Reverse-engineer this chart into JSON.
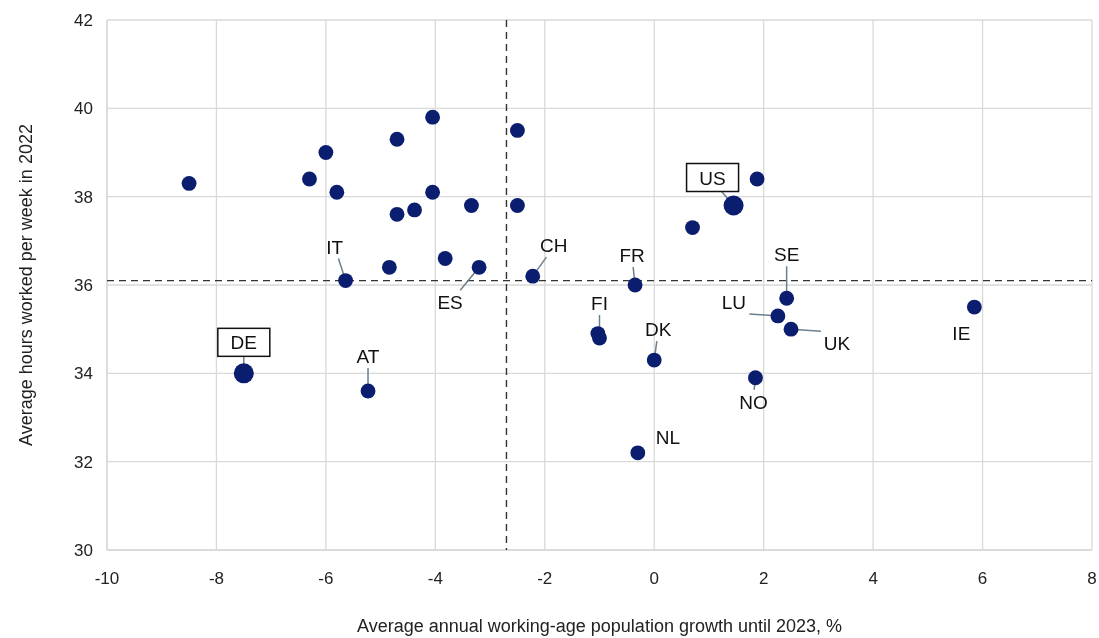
{
  "chart_data": {
    "type": "bubble",
    "xlabel": "Average annual working-age population growth until 2023, %",
    "ylabel": "Average hours worked per week in 2022",
    "xlim": [
      -10,
      8
    ],
    "xticks": [
      -10,
      -8,
      -6,
      -4,
      -2,
      0,
      2,
      4,
      6,
      8
    ],
    "ylim": [
      30,
      42
    ],
    "yticks": [
      30,
      32,
      34,
      36,
      38,
      40,
      42
    ],
    "grid": true,
    "marker": "circle",
    "series": [
      {
        "color": "#0b1d6e",
        "x": [
          -8.5,
          -6.0,
          -6.3,
          -5.8,
          -4.7,
          -4.05,
          -4.05,
          -4.7,
          -4.38,
          -3.34,
          -2.5,
          -2.5,
          -5.64,
          -4.84,
          -3.82,
          -3.2,
          -2.22,
          -7.5,
          -5.23,
          1.45,
          1.88,
          0.7,
          -0.35,
          -1.03,
          -1.0,
          0.0,
          -0.3,
          2.42,
          2.26,
          2.5,
          1.85,
          5.85
        ],
        "values": [
          38.3,
          39.0,
          38.4,
          38.1,
          39.3,
          39.8,
          38.1,
          37.6,
          37.7,
          37.8,
          39.5,
          37.8,
          36.1,
          36.4,
          36.6,
          36.4,
          36.2,
          34.0,
          33.6,
          37.8,
          38.4,
          37.3,
          36.0,
          34.9,
          34.8,
          34.3,
          32.2,
          35.7,
          35.3,
          35.0,
          33.9,
          35.5
        ],
        "sizes": [
          0.55,
          0.55,
          0.55,
          0.55,
          0.55,
          0.55,
          0.55,
          0.55,
          0.55,
          0.55,
          0.55,
          0.55,
          0.55,
          0.55,
          0.55,
          0.55,
          0.55,
          1,
          0.55,
          1,
          0.55,
          0.55,
          0.55,
          0.55,
          0.55,
          0.55,
          0.55,
          0.55,
          0.55,
          0.55,
          0.55,
          0.55
        ]
      }
    ],
    "ref_lines": [
      {
        "axis": "x",
        "value": -2.7,
        "color": "#333333",
        "line_style": "dashed"
      },
      {
        "axis": "y",
        "value": 36.1,
        "color": "#333333",
        "line_style": "dashed"
      }
    ],
    "annotations": [
      {
        "text": "IT",
        "x": -5.64,
        "y": 36.1
      },
      {
        "text": "ES",
        "x": -3.2,
        "y": 36.4
      },
      {
        "text": "CH",
        "x": -2.22,
        "y": 36.2
      },
      {
        "text": "DE",
        "x": -7.5,
        "y": 34.0
      },
      {
        "text": "AT",
        "x": -5.23,
        "y": 33.6
      },
      {
        "text": "US",
        "x": 1.45,
        "y": 37.8
      },
      {
        "text": "FR",
        "x": -0.35,
        "y": 36.0
      },
      {
        "text": "FI",
        "x": -1.0,
        "y": 34.8
      },
      {
        "text": "DK",
        "x": 0.0,
        "y": 34.3
      },
      {
        "text": "NL",
        "x": -0.3,
        "y": 32.2
      },
      {
        "text": "SE",
        "x": 2.42,
        "y": 35.7
      },
      {
        "text": "LU",
        "x": 2.26,
        "y": 35.3
      },
      {
        "text": "UK",
        "x": 2.5,
        "y": 35.0
      },
      {
        "text": "NO",
        "x": 1.85,
        "y": 33.9
      },
      {
        "text": "IE",
        "x": 5.85,
        "y": 35.5
      }
    ]
  }
}
